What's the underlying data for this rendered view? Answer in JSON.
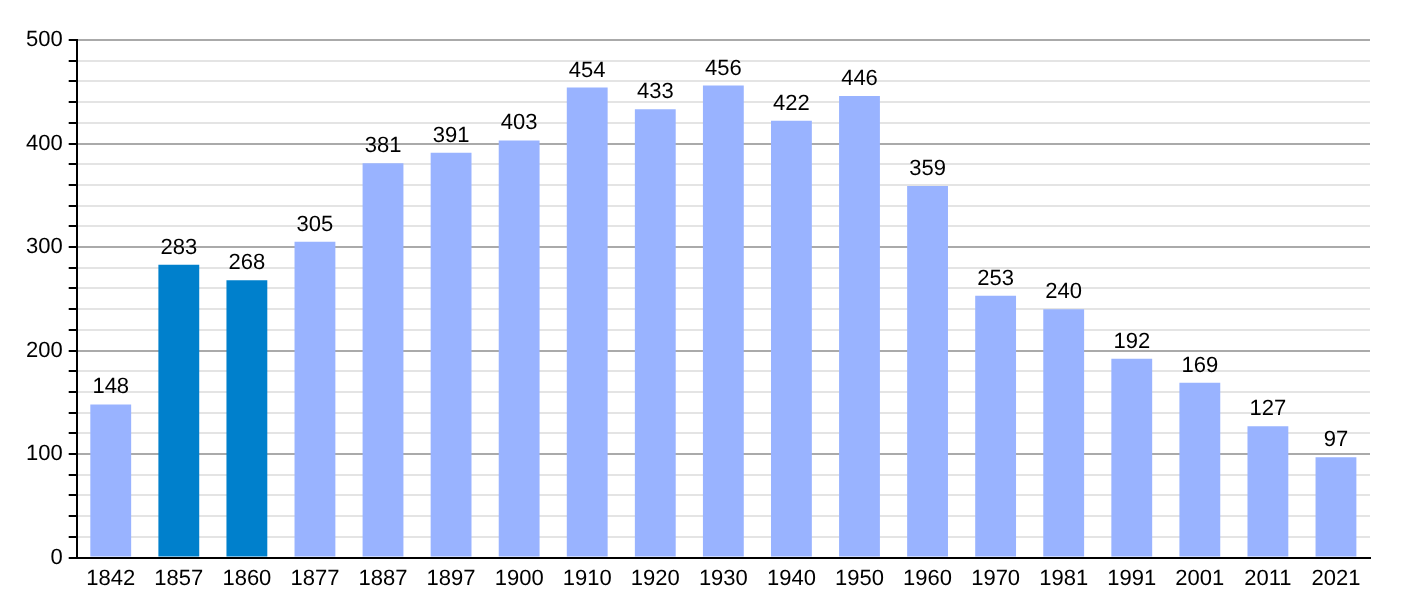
{
  "chart_data": {
    "type": "bar",
    "categories": [
      "1842",
      "1857",
      "1860",
      "1877",
      "1887",
      "1897",
      "1900",
      "1910",
      "1920",
      "1930",
      "1940",
      "1950",
      "1960",
      "1970",
      "1981",
      "1991",
      "2001",
      "2011",
      "2021"
    ],
    "values": [
      148,
      283,
      268,
      305,
      381,
      391,
      403,
      454,
      433,
      456,
      422,
      446,
      359,
      253,
      240,
      192,
      169,
      127,
      97
    ],
    "colors": [
      "#99b3ff",
      "#0080cc",
      "#0080cc",
      "#99b3ff",
      "#99b3ff",
      "#99b3ff",
      "#99b3ff",
      "#99b3ff",
      "#99b3ff",
      "#99b3ff",
      "#99b3ff",
      "#99b3ff",
      "#99b3ff",
      "#99b3ff",
      "#99b3ff",
      "#99b3ff",
      "#99b3ff",
      "#99b3ff",
      "#99b3ff"
    ],
    "ylim": [
      0,
      500
    ],
    "yticks": [
      0,
      {
        "value": 20,
        "label": null
      },
      {
        "value": 40,
        "label": null
      },
      {
        "value": 60,
        "label": null
      },
      {
        "value": 80,
        "label": null
      },
      100,
      {
        "value": 120,
        "label": null
      },
      {
        "value": 140,
        "label": null
      },
      {
        "value": 160,
        "label": null
      },
      {
        "value": 180,
        "label": null
      },
      200,
      {
        "value": 220,
        "label": null
      },
      {
        "value": 240,
        "label": null
      },
      {
        "value": 260,
        "label": null
      },
      {
        "value": 280,
        "label": null
      },
      300,
      {
        "value": 320,
        "label": null
      },
      {
        "value": 340,
        "label": null
      },
      {
        "value": 360,
        "label": null
      },
      {
        "value": 380,
        "label": null
      },
      400,
      {
        "value": 420,
        "label": null
      },
      {
        "value": 440,
        "label": null
      },
      {
        "value": 460,
        "label": null
      },
      {
        "value": 480,
        "label": null
      },
      500
    ],
    "grid": "y",
    "data_labels": true,
    "legend": false
  }
}
